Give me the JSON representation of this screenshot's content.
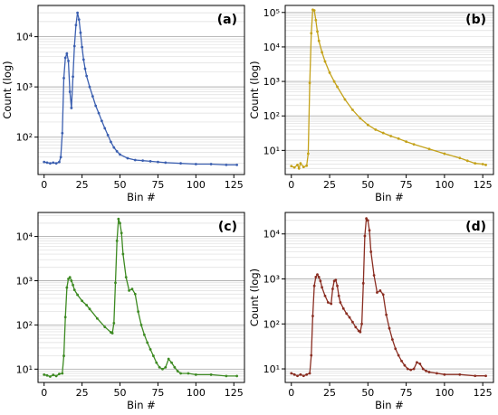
{
  "chart_data": [
    {
      "panel_label": "(a)",
      "type": "line",
      "xlabel": "Bin #",
      "ylabel": "Count (log)",
      "y_scale": "log",
      "xlim": [
        -4,
        132
      ],
      "ylim": [
        18,
        42000
      ],
      "x_ticks": [
        0,
        25,
        50,
        75,
        100,
        125
      ],
      "y_ticks": [
        100,
        1000,
        10000
      ],
      "y_tick_labels": [
        "10²",
        "10³",
        "10⁴"
      ],
      "grid": true,
      "color": "#3b5fb0",
      "series": [
        {
          "x": [
            0,
            2,
            4,
            6,
            8,
            10,
            11,
            12,
            13,
            14,
            15,
            16,
            17,
            18,
            19,
            20,
            21,
            22,
            23,
            24,
            25,
            26,
            27,
            28,
            30,
            32,
            34,
            36,
            38,
            40,
            42,
            44,
            46,
            48,
            50,
            55,
            60,
            65,
            70,
            75,
            80,
            90,
            100,
            110,
            120,
            127
          ],
          "y": [
            32,
            31,
            30,
            31,
            30,
            32,
            40,
            120,
            1500,
            3800,
            4600,
            3300,
            800,
            380,
            1600,
            6500,
            17000,
            30000,
            22000,
            12000,
            6200,
            3500,
            2300,
            1650,
            1000,
            650,
            420,
            300,
            210,
            150,
            110,
            80,
            62,
            52,
            45,
            38,
            35,
            34,
            33,
            32,
            31,
            30,
            29,
            29,
            28,
            28
          ]
        }
      ]
    },
    {
      "panel_label": "(b)",
      "type": "line",
      "xlabel": "Bin #",
      "ylabel": "Count (log)",
      "y_scale": "log",
      "xlim": [
        -4,
        132
      ],
      "ylim": [
        2,
        160000
      ],
      "x_ticks": [
        0,
        25,
        50,
        75,
        100,
        125
      ],
      "y_ticks": [
        10,
        100,
        1000,
        10000,
        100000
      ],
      "y_tick_labels": [
        "10¹",
        "10²",
        "10³",
        "10⁴",
        "10⁵"
      ],
      "grid": true,
      "color": "#c4a21a",
      "series": [
        {
          "x": [
            0,
            2,
            4,
            5,
            6,
            8,
            10,
            11,
            12,
            13,
            14,
            15,
            16,
            17,
            18,
            20,
            22,
            25,
            28,
            30,
            35,
            40,
            45,
            50,
            55,
            60,
            65,
            70,
            75,
            80,
            90,
            100,
            110,
            115,
            120,
            125,
            127
          ],
          "y": [
            3.5,
            3.2,
            3.8,
            3.0,
            4.2,
            3.3,
            3.6,
            8,
            900,
            25000,
            120000,
            115000,
            60000,
            28000,
            15000,
            7000,
            3800,
            1800,
            1000,
            700,
            300,
            150,
            85,
            55,
            40,
            32,
            26,
            22,
            18,
            15,
            11,
            8,
            6,
            5,
            4.2,
            4,
            3.8
          ]
        }
      ]
    },
    {
      "panel_label": "(c)",
      "type": "line",
      "xlabel": "Bin #",
      "ylabel": "",
      "y_scale": "log",
      "xlim": [
        -4,
        132
      ],
      "ylim": [
        5,
        35000
      ],
      "x_ticks": [
        0,
        25,
        50,
        75,
        100,
        125
      ],
      "y_ticks": [
        10,
        100,
        1000,
        10000
      ],
      "y_tick_labels": [
        "10¹",
        "10²",
        "10³",
        "10⁴"
      ],
      "grid": true,
      "color": "#3d8a22",
      "series": [
        {
          "x": [
            0,
            2,
            4,
            6,
            8,
            10,
            12,
            13,
            14,
            15,
            16,
            17,
            18,
            19,
            20,
            22,
            25,
            28,
            30,
            35,
            40,
            44,
            45,
            46,
            47,
            48,
            49,
            50,
            51,
            52,
            54,
            56,
            58,
            60,
            62,
            64,
            66,
            68,
            70,
            72,
            74,
            76,
            78,
            80,
            82,
            84,
            86,
            88,
            90,
            95,
            100,
            110,
            120,
            127
          ],
          "y": [
            7.5,
            7.2,
            6.8,
            7.4,
            7,
            7.8,
            8,
            20,
            150,
            700,
            1100,
            1200,
            1000,
            800,
            620,
            480,
            350,
            280,
            230,
            140,
            90,
            68,
            65,
            110,
            900,
            8000,
            25000,
            20000,
            12000,
            4000,
            1200,
            600,
            650,
            500,
            200,
            100,
            60,
            40,
            28,
            20,
            14,
            11,
            10,
            11,
            17,
            14,
            11,
            9,
            8,
            8,
            7.5,
            7.5,
            7,
            7
          ]
        }
      ]
    },
    {
      "panel_label": "(d)",
      "type": "line",
      "xlabel": "Bin #",
      "ylabel": "Count (log)",
      "y_scale": "log",
      "xlim": [
        -4,
        132
      ],
      "ylim": [
        5,
        30000
      ],
      "x_ticks": [
        0,
        25,
        50,
        75,
        100,
        125
      ],
      "y_ticks": [
        10,
        100,
        1000,
        10000
      ],
      "y_tick_labels": [
        "10¹",
        "10²",
        "10³",
        "10⁴"
      ],
      "grid": true,
      "color": "#8a2e22",
      "series": [
        {
          "x": [
            0,
            2,
            4,
            6,
            8,
            10,
            12,
            13,
            14,
            15,
            16,
            17,
            18,
            19,
            20,
            22,
            24,
            26,
            27,
            28,
            29,
            30,
            31,
            32,
            34,
            36,
            38,
            40,
            42,
            44,
            45,
            46,
            47,
            48,
            49,
            50,
            51,
            52,
            54,
            56,
            58,
            60,
            62,
            64,
            66,
            68,
            70,
            72,
            74,
            76,
            78,
            80,
            82,
            84,
            86,
            88,
            90,
            95,
            100,
            110,
            120,
            127
          ],
          "y": [
            8,
            7.5,
            7,
            7.5,
            7,
            7.5,
            8,
            20,
            150,
            700,
            1100,
            1250,
            1100,
            900,
            650,
            420,
            300,
            280,
            600,
            900,
            950,
            700,
            420,
            300,
            220,
            170,
            140,
            110,
            85,
            70,
            66,
            100,
            800,
            9000,
            22000,
            20000,
            12000,
            4000,
            1200,
            500,
            550,
            450,
            160,
            80,
            45,
            28,
            20,
            15,
            12,
            10,
            9.5,
            10,
            14,
            13,
            10,
            9,
            8.5,
            8,
            7.5,
            7.5,
            7,
            7
          ]
        }
      ]
    }
  ]
}
